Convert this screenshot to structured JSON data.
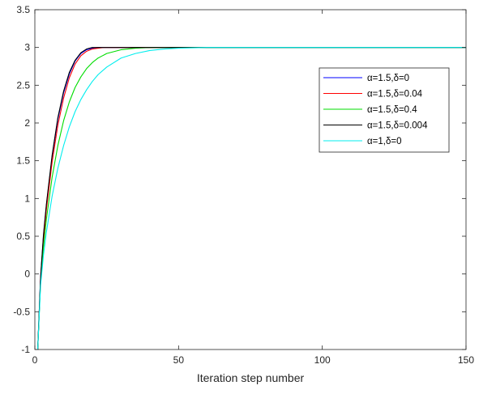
{
  "chart_data": {
    "type": "line",
    "title": "",
    "xlabel": "Iteration step number",
    "ylabel": "",
    "xlim": [
      0,
      150
    ],
    "ylim": [
      -1,
      3.5
    ],
    "xticks": [
      0,
      50,
      100,
      150
    ],
    "xtick_labels": [
      "0",
      "50",
      "100",
      "150"
    ],
    "yticks": [
      -1,
      -0.5,
      0,
      0.5,
      1,
      1.5,
      2,
      2.5,
      3,
      3.5
    ],
    "ytick_labels": [
      "-1",
      "-0.5",
      "0",
      "0.5",
      "1",
      "1.5",
      "2",
      "2.5",
      "3",
      "3.5"
    ],
    "grid": false,
    "legend_position": "upper-right",
    "series": [
      {
        "name": "α=1.5,δ=0",
        "label": {
          "p1": "α",
          "p2": "=1.5,",
          "p3": "δ",
          "p4": "=0"
        },
        "color": "#0000ff",
        "points": [
          [
            1,
            -1.0
          ],
          [
            2,
            -0.05
          ],
          [
            3,
            0.5
          ],
          [
            4,
            0.9
          ],
          [
            6,
            1.55
          ],
          [
            8,
            2.05
          ],
          [
            10,
            2.4
          ],
          [
            12,
            2.65
          ],
          [
            14,
            2.82
          ],
          [
            16,
            2.92
          ],
          [
            18,
            2.97
          ],
          [
            20,
            2.99
          ],
          [
            22,
            3.0
          ],
          [
            30,
            3.0
          ],
          [
            50,
            3.0
          ],
          [
            100,
            3.0
          ],
          [
            150,
            3.0
          ]
        ]
      },
      {
        "name": "α=1.5,δ=0.04",
        "label": {
          "p1": "α",
          "p2": "=1.5,",
          "p3": "δ",
          "p4": "=0.04"
        },
        "color": "#ff0000",
        "points": [
          [
            1,
            -1.0
          ],
          [
            2,
            -0.08
          ],
          [
            3,
            0.45
          ],
          [
            4,
            0.85
          ],
          [
            6,
            1.48
          ],
          [
            8,
            1.97
          ],
          [
            10,
            2.33
          ],
          [
            12,
            2.6
          ],
          [
            14,
            2.78
          ],
          [
            16,
            2.89
          ],
          [
            18,
            2.95
          ],
          [
            20,
            2.98
          ],
          [
            22,
            2.99
          ],
          [
            24,
            3.0
          ],
          [
            30,
            3.0
          ],
          [
            50,
            3.0
          ],
          [
            100,
            3.0
          ],
          [
            150,
            3.0
          ]
        ]
      },
      {
        "name": "α=1.5,δ=0.4",
        "label": {
          "p1": "α",
          "p2": "=1.5,",
          "p3": "δ",
          "p4": "=0.4"
        },
        "color": "#00dd00",
        "points": [
          [
            1,
            -1.0
          ],
          [
            2,
            -0.1
          ],
          [
            3,
            0.35
          ],
          [
            4,
            0.72
          ],
          [
            6,
            1.28
          ],
          [
            8,
            1.7
          ],
          [
            10,
            2.03
          ],
          [
            12,
            2.28
          ],
          [
            14,
            2.47
          ],
          [
            16,
            2.61
          ],
          [
            18,
            2.72
          ],
          [
            20,
            2.8
          ],
          [
            22,
            2.86
          ],
          [
            25,
            2.92
          ],
          [
            30,
            2.97
          ],
          [
            35,
            2.99
          ],
          [
            40,
            3.0
          ],
          [
            50,
            3.0
          ],
          [
            100,
            3.0
          ],
          [
            150,
            3.0
          ]
        ]
      },
      {
        "name": "α=1.5,δ=0.004",
        "label": {
          "p1": "α",
          "p2": "=1.5,",
          "p3": "δ",
          "p4": "=0.004"
        },
        "color": "#000000",
        "points": [
          [
            1,
            -1.0
          ],
          [
            2,
            -0.04
          ],
          [
            3,
            0.52
          ],
          [
            4,
            0.92
          ],
          [
            6,
            1.57
          ],
          [
            8,
            2.07
          ],
          [
            10,
            2.42
          ],
          [
            12,
            2.67
          ],
          [
            14,
            2.83
          ],
          [
            16,
            2.93
          ],
          [
            18,
            2.98
          ],
          [
            20,
            3.0
          ],
          [
            22,
            3.0
          ],
          [
            30,
            3.0
          ],
          [
            50,
            3.0
          ],
          [
            100,
            3.0
          ],
          [
            150,
            3.0
          ]
        ]
      },
      {
        "name": "α=1,δ=0",
        "label": {
          "p1": "α",
          "p2": "=1,",
          "p3": "δ",
          "p4": "=0"
        },
        "color": "#00eeee",
        "points": [
          [
            1,
            -1.0
          ],
          [
            2,
            -0.15
          ],
          [
            3,
            0.25
          ],
          [
            4,
            0.55
          ],
          [
            6,
            1.03
          ],
          [
            8,
            1.4
          ],
          [
            10,
            1.7
          ],
          [
            12,
            1.95
          ],
          [
            14,
            2.15
          ],
          [
            16,
            2.31
          ],
          [
            18,
            2.44
          ],
          [
            20,
            2.55
          ],
          [
            22,
            2.64
          ],
          [
            25,
            2.74
          ],
          [
            30,
            2.86
          ],
          [
            35,
            2.92
          ],
          [
            40,
            2.96
          ],
          [
            45,
            2.98
          ],
          [
            50,
            2.99
          ],
          [
            60,
            3.0
          ],
          [
            100,
            3.0
          ],
          [
            150,
            3.0
          ]
        ]
      }
    ]
  }
}
